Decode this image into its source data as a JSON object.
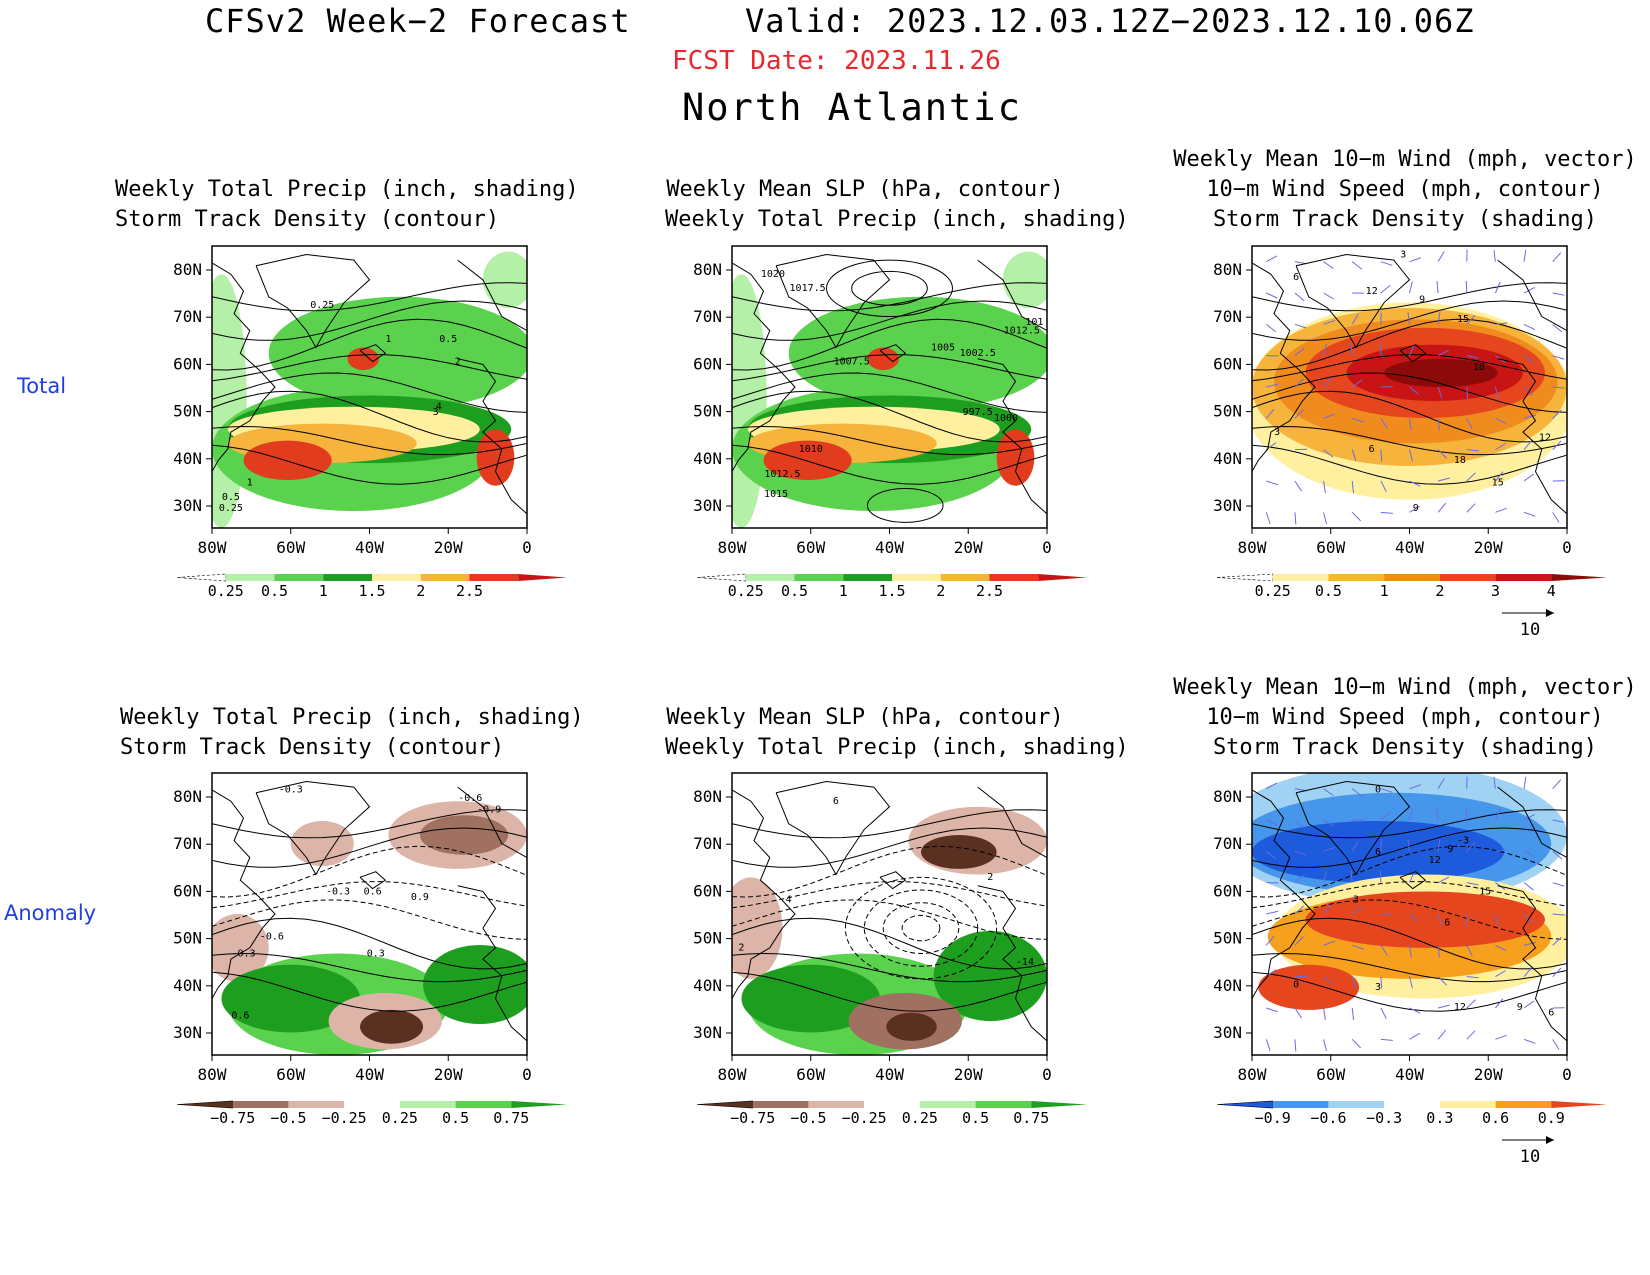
{
  "header": {
    "title": "CFSv2 Week−2 Forecast",
    "valid": "Valid: 2023.12.03.12Z−2023.12.10.06Z",
    "fcst_date": "FCST Date: 2023.11.26",
    "region": "North Atlantic"
  },
  "rows": [
    {
      "label": "Total"
    },
    {
      "label": "Anomaly"
    }
  ],
  "panels": {
    "precip_total": {
      "title": [
        "Weekly Total Precip (inch, shading)",
        "Storm Track Density (contour)"
      ],
      "contour_labels": [
        "0.25",
        "1",
        "0.5",
        "2",
        "4",
        "3",
        "1",
        "0.5",
        "0.25"
      ],
      "colorbar": {
        "labels": [
          "0.25",
          "0.5",
          "1",
          "1.5",
          "2",
          "2.5"
        ],
        "colors": [
          "#ffffff",
          "#b4f0a8",
          "#5ad24e",
          "#1e9e1e",
          "#fff0a0",
          "#f6b43c",
          "#e23c1e",
          "#c81414"
        ]
      }
    },
    "slp_total": {
      "title": [
        "Weekly Mean SLP (hPa, contour)",
        "Weekly Total Precip (inch, shading)"
      ],
      "contour_labels": [
        "1020",
        "1017.5",
        "1007.5",
        "1005",
        "1002.5",
        "101",
        "1012.5",
        "997.5",
        "1000",
        "1010",
        "1012.5",
        "1015"
      ],
      "colorbar": {
        "labels": [
          "0.25",
          "0.5",
          "1",
          "1.5",
          "2",
          "2.5"
        ],
        "colors": [
          "#ffffff",
          "#b4f0a8",
          "#5ad24e",
          "#1e9e1e",
          "#fff0a0",
          "#f6b43c",
          "#e23c1e",
          "#c81414"
        ]
      }
    },
    "wind_total": {
      "title": [
        "Weekly Mean 10−m Wind (mph, vector)",
        "10−m Wind Speed (mph, contour)",
        "Storm Track Density (shading)"
      ],
      "contour_labels": [
        "3",
        "6",
        "12",
        "9",
        "15",
        "18",
        "3",
        "6",
        "12",
        "18",
        "15",
        "9"
      ],
      "colorbar": {
        "labels": [
          "0.25",
          "0.5",
          "1",
          "2",
          "3",
          "4"
        ],
        "colors": [
          "#ffffff",
          "#fff0a0",
          "#f6b43c",
          "#f08c1e",
          "#e6461e",
          "#c81414",
          "#8c0a0a"
        ]
      },
      "vector_ref": "10"
    },
    "precip_anom": {
      "title": [
        "Weekly Total Precip (inch, shading)",
        "Storm Track Density (contour)"
      ],
      "contour_labels": [
        "-0.3",
        "-0.6",
        "-0.9",
        "-0.3",
        "0.6",
        "0.9",
        "-0.6",
        "-0.3",
        "0.3",
        "0.6"
      ],
      "colorbar": {
        "labels": [
          "−0.75",
          "−0.5",
          "−0.25",
          "0.25",
          "0.5",
          "0.75"
        ],
        "colors": [
          "#5a3020",
          "#a07060",
          "#dcb4a8",
          "#ffffff",
          "#b4f0a8",
          "#5ad24e",
          "#1e9e1e"
        ]
      }
    },
    "slp_anom": {
      "title": [
        "Weekly Mean SLP (hPa, contour)",
        "Weekly Total Precip (inch, shading)"
      ],
      "contour_labels": [
        "6",
        "4",
        "2",
        "2",
        "-14"
      ],
      "colorbar": {
        "labels": [
          "−0.75",
          "−0.5",
          "−0.25",
          "0.25",
          "0.5",
          "0.75"
        ],
        "colors": [
          "#5a3020",
          "#a07060",
          "#dcb4a8",
          "#ffffff",
          "#b4f0a8",
          "#5ad24e",
          "#1e9e1e"
        ]
      }
    },
    "wind_anom": {
      "title": [
        "Weekly Mean 10−m Wind (mph, vector)",
        "10−m Wind Speed (mph, contour)",
        "Storm Track Density (shading)"
      ],
      "contour_labels": [
        "0",
        "6",
        "-3",
        "12",
        "9",
        "15",
        "3",
        "6",
        "0",
        "3",
        "12",
        "9",
        "6"
      ],
      "colorbar": {
        "labels": [
          "−0.9",
          "−0.6",
          "−0.3",
          "0.3",
          "0.6",
          "0.9"
        ],
        "colors": [
          "#1e5adc",
          "#4696ec",
          "#a0d2f4",
          "#ffffff",
          "#fff0a0",
          "#f6a01e",
          "#e6461e"
        ]
      },
      "vector_ref": "10"
    }
  },
  "axes": {
    "lat_ticks": [
      "80N",
      "70N",
      "60N",
      "50N",
      "40N",
      "30N"
    ],
    "lon_ticks": [
      "80W",
      "60W",
      "40W",
      "20W",
      "0"
    ]
  }
}
